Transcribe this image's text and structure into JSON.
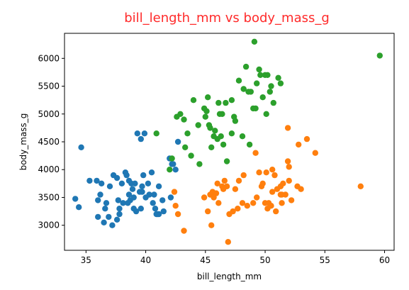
{
  "chart_data": {
    "type": "scatter",
    "title": "bill_length_mm vs body_mass_g",
    "title_color": "#ff2a2a",
    "xlabel": "bill_length_mm",
    "ylabel": "body_mass_g",
    "xlim": [
      33.2,
      60.8
    ],
    "ylim": [
      2550,
      6450
    ],
    "xticks": [
      35,
      40,
      45,
      50,
      55,
      60
    ],
    "yticks": [
      3000,
      3500,
      4000,
      4500,
      5000,
      5500,
      6000
    ],
    "grid": false,
    "series": [
      {
        "color": "#1f77b4",
        "points": [
          [
            34.1,
            3475
          ],
          [
            34.4,
            3325
          ],
          [
            34.6,
            4400
          ],
          [
            35.3,
            3800
          ],
          [
            35.9,
            3800
          ],
          [
            36.0,
            3450
          ],
          [
            36.0,
            3150
          ],
          [
            36.2,
            3550
          ],
          [
            36.3,
            3750
          ],
          [
            36.5,
            3050
          ],
          [
            36.6,
            3300
          ],
          [
            36.7,
            3400
          ],
          [
            36.9,
            3150
          ],
          [
            37.2,
            3000
          ],
          [
            37.3,
            3900
          ],
          [
            37.6,
            3100
          ],
          [
            37.7,
            3450
          ],
          [
            37.8,
            3300
          ],
          [
            37.8,
            3200
          ],
          [
            38.0,
            3750
          ],
          [
            38.1,
            3400
          ],
          [
            38.3,
            3950
          ],
          [
            38.6,
            3800
          ],
          [
            38.6,
            3550
          ],
          [
            38.7,
            3450
          ],
          [
            38.8,
            3750
          ],
          [
            38.9,
            3650
          ],
          [
            39.0,
            3500
          ],
          [
            39.0,
            3300
          ],
          [
            39.1,
            3750
          ],
          [
            39.2,
            3250
          ],
          [
            39.3,
            4650
          ],
          [
            39.5,
            3600
          ],
          [
            39.6,
            4550
          ],
          [
            39.7,
            3700
          ],
          [
            39.8,
            3900
          ],
          [
            40.0,
            3500
          ],
          [
            40.3,
            3550
          ],
          [
            40.6,
            3400
          ],
          [
            40.8,
            3300
          ],
          [
            41.1,
            3200
          ],
          [
            41.4,
            3450
          ],
          [
            39.6,
            3300
          ],
          [
            40.9,
            3200
          ],
          [
            38.5,
            3400
          ],
          [
            38.4,
            3900
          ],
          [
            37.0,
            3700
          ],
          [
            37.6,
            3850
          ],
          [
            39.7,
            3600
          ],
          [
            40.2,
            3750
          ],
          [
            41.1,
            3700
          ],
          [
            39.9,
            4650
          ],
          [
            40.7,
            3550
          ],
          [
            41.5,
            3250
          ],
          [
            42.1,
            3500
          ],
          [
            42.2,
            4100
          ],
          [
            42.3,
            4100
          ],
          [
            42.5,
            4000
          ],
          [
            42.7,
            4500
          ],
          [
            42.0,
            4200
          ],
          [
            40.5,
            3950
          ],
          [
            41.0,
            3200
          ]
        ]
      },
      {
        "color": "#ff7f0e",
        "points": [
          [
            42.4,
            3600
          ],
          [
            42.5,
            3350
          ],
          [
            42.7,
            3200
          ],
          [
            43.2,
            2900
          ],
          [
            44.9,
            3500
          ],
          [
            45.2,
            3250
          ],
          [
            45.4,
            3550
          ],
          [
            45.7,
            3500
          ],
          [
            45.6,
            3600
          ],
          [
            45.9,
            3575
          ],
          [
            46.1,
            3400
          ],
          [
            46.4,
            3700
          ],
          [
            46.5,
            3650
          ],
          [
            46.6,
            3800
          ],
          [
            46.8,
            3700
          ],
          [
            47.0,
            3200
          ],
          [
            47.3,
            3250
          ],
          [
            47.5,
            3650
          ],
          [
            47.7,
            3300
          ],
          [
            48.1,
            3400
          ],
          [
            48.5,
            3350
          ],
          [
            49.0,
            3400
          ],
          [
            49.3,
            3500
          ],
          [
            49.7,
            3700
          ],
          [
            49.8,
            3750
          ],
          [
            50.0,
            3400
          ],
          [
            50.2,
            3300
          ],
          [
            50.3,
            3400
          ],
          [
            50.5,
            3350
          ],
          [
            50.6,
            3600
          ],
          [
            50.8,
            3900
          ],
          [
            51.0,
            3650
          ],
          [
            51.3,
            3550
          ],
          [
            51.4,
            3400
          ],
          [
            51.5,
            3750
          ],
          [
            51.7,
            3550
          ],
          [
            51.9,
            4150
          ],
          [
            52.0,
            4050
          ],
          [
            52.2,
            3450
          ],
          [
            52.7,
            3700
          ],
          [
            52.8,
            4450
          ],
          [
            53.5,
            4550
          ],
          [
            54.2,
            4300
          ],
          [
            58.0,
            3700
          ],
          [
            46.9,
            2700
          ],
          [
            46.0,
            3750
          ],
          [
            49.5,
            3950
          ],
          [
            50.1,
            3950
          ],
          [
            50.9,
            3250
          ],
          [
            51.3,
            3700
          ],
          [
            52.0,
            3800
          ],
          [
            53.0,
            3650
          ],
          [
            45.5,
            3000
          ],
          [
            47.8,
            3800
          ],
          [
            48.2,
            3900
          ],
          [
            49.2,
            4300
          ],
          [
            50.6,
            4000
          ],
          [
            51.4,
            3550
          ],
          [
            51.9,
            4750
          ]
        ]
      },
      {
        "color": "#2ca02c",
        "points": [
          [
            40.9,
            4650
          ],
          [
            42.6,
            4950
          ],
          [
            42.9,
            5000
          ],
          [
            43.2,
            4900
          ],
          [
            43.3,
            4400
          ],
          [
            43.5,
            4650
          ],
          [
            44.4,
            4800
          ],
          [
            44.9,
            5100
          ],
          [
            45.1,
            5050
          ],
          [
            45.2,
            5300
          ],
          [
            45.3,
            4800
          ],
          [
            45.5,
            4400
          ],
          [
            45.8,
            4700
          ],
          [
            46.1,
            5200
          ],
          [
            46.2,
            5000
          ],
          [
            46.4,
            5000
          ],
          [
            46.5,
            4450
          ],
          [
            46.7,
            5200
          ],
          [
            46.8,
            4150
          ],
          [
            47.2,
            5250
          ],
          [
            47.5,
            4875
          ],
          [
            47.8,
            5600
          ],
          [
            48.4,
            5850
          ],
          [
            48.6,
            5400
          ],
          [
            48.7,
            4450
          ],
          [
            49.1,
            6300
          ],
          [
            49.2,
            5100
          ],
          [
            49.3,
            5550
          ],
          [
            49.5,
            5800
          ],
          [
            49.6,
            5700
          ],
          [
            49.8,
            5300
          ],
          [
            50.0,
            5700
          ],
          [
            50.1,
            5000
          ],
          [
            50.2,
            5700
          ],
          [
            50.4,
            5400
          ],
          [
            50.5,
            5500
          ],
          [
            50.7,
            5200
          ],
          [
            51.1,
            5650
          ],
          [
            51.3,
            5550
          ],
          [
            42.2,
            4200
          ],
          [
            43.8,
            4250
          ],
          [
            44.5,
            4100
          ],
          [
            45.0,
            4950
          ],
          [
            45.7,
            4600
          ],
          [
            46.3,
            4600
          ],
          [
            47.2,
            4650
          ],
          [
            47.4,
            4950
          ],
          [
            48.1,
            4600
          ],
          [
            48.2,
            5450
          ],
          [
            48.8,
            5400
          ],
          [
            49.0,
            5100
          ],
          [
            59.6,
            6050
          ],
          [
            45.4,
            4750
          ],
          [
            46.0,
            4550
          ],
          [
            44.0,
            5250
          ],
          [
            42.0,
            4000
          ]
        ]
      }
    ]
  }
}
